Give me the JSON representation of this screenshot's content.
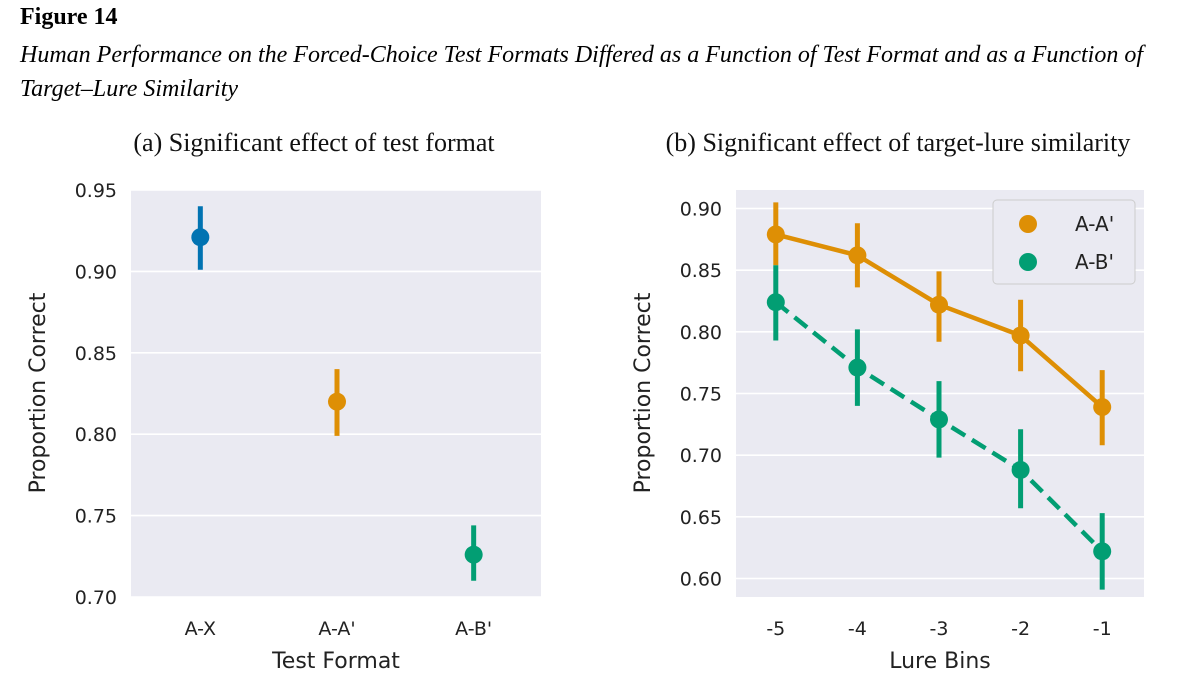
{
  "figure": {
    "label": "Figure 14",
    "caption": "Human Performance on the Forced-Choice Test Formats Differed as a Function of Test Format and as a Function of Target–Lure Similarity"
  },
  "colors": {
    "blue": "#0173b2",
    "orange": "#de8f05",
    "green": "#029e73",
    "panel_bg": "#eaeaf2",
    "grid": "#ffffff"
  },
  "chart_data": [
    {
      "type": "scatter",
      "title": "(a) Significant effect of test format",
      "xlabel": "Test Format",
      "ylabel": "Proportion Correct",
      "ylim": [
        0.7,
        0.95
      ],
      "yticks": [
        "0.70",
        "0.75",
        "0.80",
        "0.85",
        "0.90",
        "0.95"
      ],
      "grid": true,
      "categories": [
        "A-X",
        "A-A'",
        "A-B'"
      ],
      "points": [
        {
          "category": "A-X",
          "value": 0.921,
          "ci_low": 0.901,
          "ci_high": 0.94,
          "color": "#0173b2"
        },
        {
          "category": "A-A'",
          "value": 0.82,
          "ci_low": 0.799,
          "ci_high": 0.84,
          "color": "#de8f05"
        },
        {
          "category": "A-B'",
          "value": 0.726,
          "ci_low": 0.71,
          "ci_high": 0.744,
          "color": "#029e73"
        }
      ]
    },
    {
      "type": "line",
      "title": "(b) Significant effect of target-lure similarity",
      "xlabel": "Lure Bins",
      "ylabel": "Proportion Correct",
      "ylim": [
        0.585,
        0.915
      ],
      "yticks": [
        "0.60",
        "0.65",
        "0.70",
        "0.75",
        "0.80",
        "0.85",
        "0.90"
      ],
      "grid": true,
      "legend_position": "top-right",
      "categories": [
        "-5",
        "-4",
        "-3",
        "-2",
        "-1"
      ],
      "series": [
        {
          "name": "A-A'",
          "color": "#de8f05",
          "style": "solid",
          "values": [
            0.879,
            0.862,
            0.822,
            0.797,
            0.739
          ],
          "ci_low": [
            0.854,
            0.836,
            0.792,
            0.768,
            0.708
          ],
          "ci_high": [
            0.905,
            0.888,
            0.849,
            0.826,
            0.769
          ]
        },
        {
          "name": "A-B'",
          "color": "#029e73",
          "style": "dashed",
          "values": [
            0.824,
            0.771,
            0.729,
            0.688,
            0.622
          ],
          "ci_low": [
            0.793,
            0.74,
            0.698,
            0.657,
            0.591
          ],
          "ci_high": [
            0.854,
            0.802,
            0.76,
            0.721,
            0.653
          ]
        }
      ]
    }
  ]
}
